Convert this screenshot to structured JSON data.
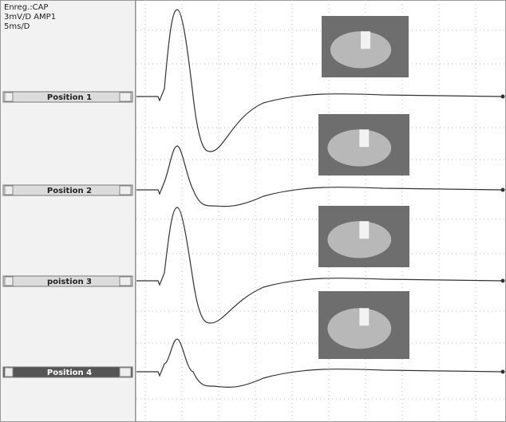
{
  "panel": {
    "lines": [
      "Enreg.:CAP",
      "3mV/D  AMP1",
      "5ms/D"
    ]
  },
  "channels": [
    {
      "label": "Position 1"
    },
    {
      "label": "Position 2"
    },
    {
      "label": "poistion 3"
    },
    {
      "label": "Position 4"
    }
  ]
}
